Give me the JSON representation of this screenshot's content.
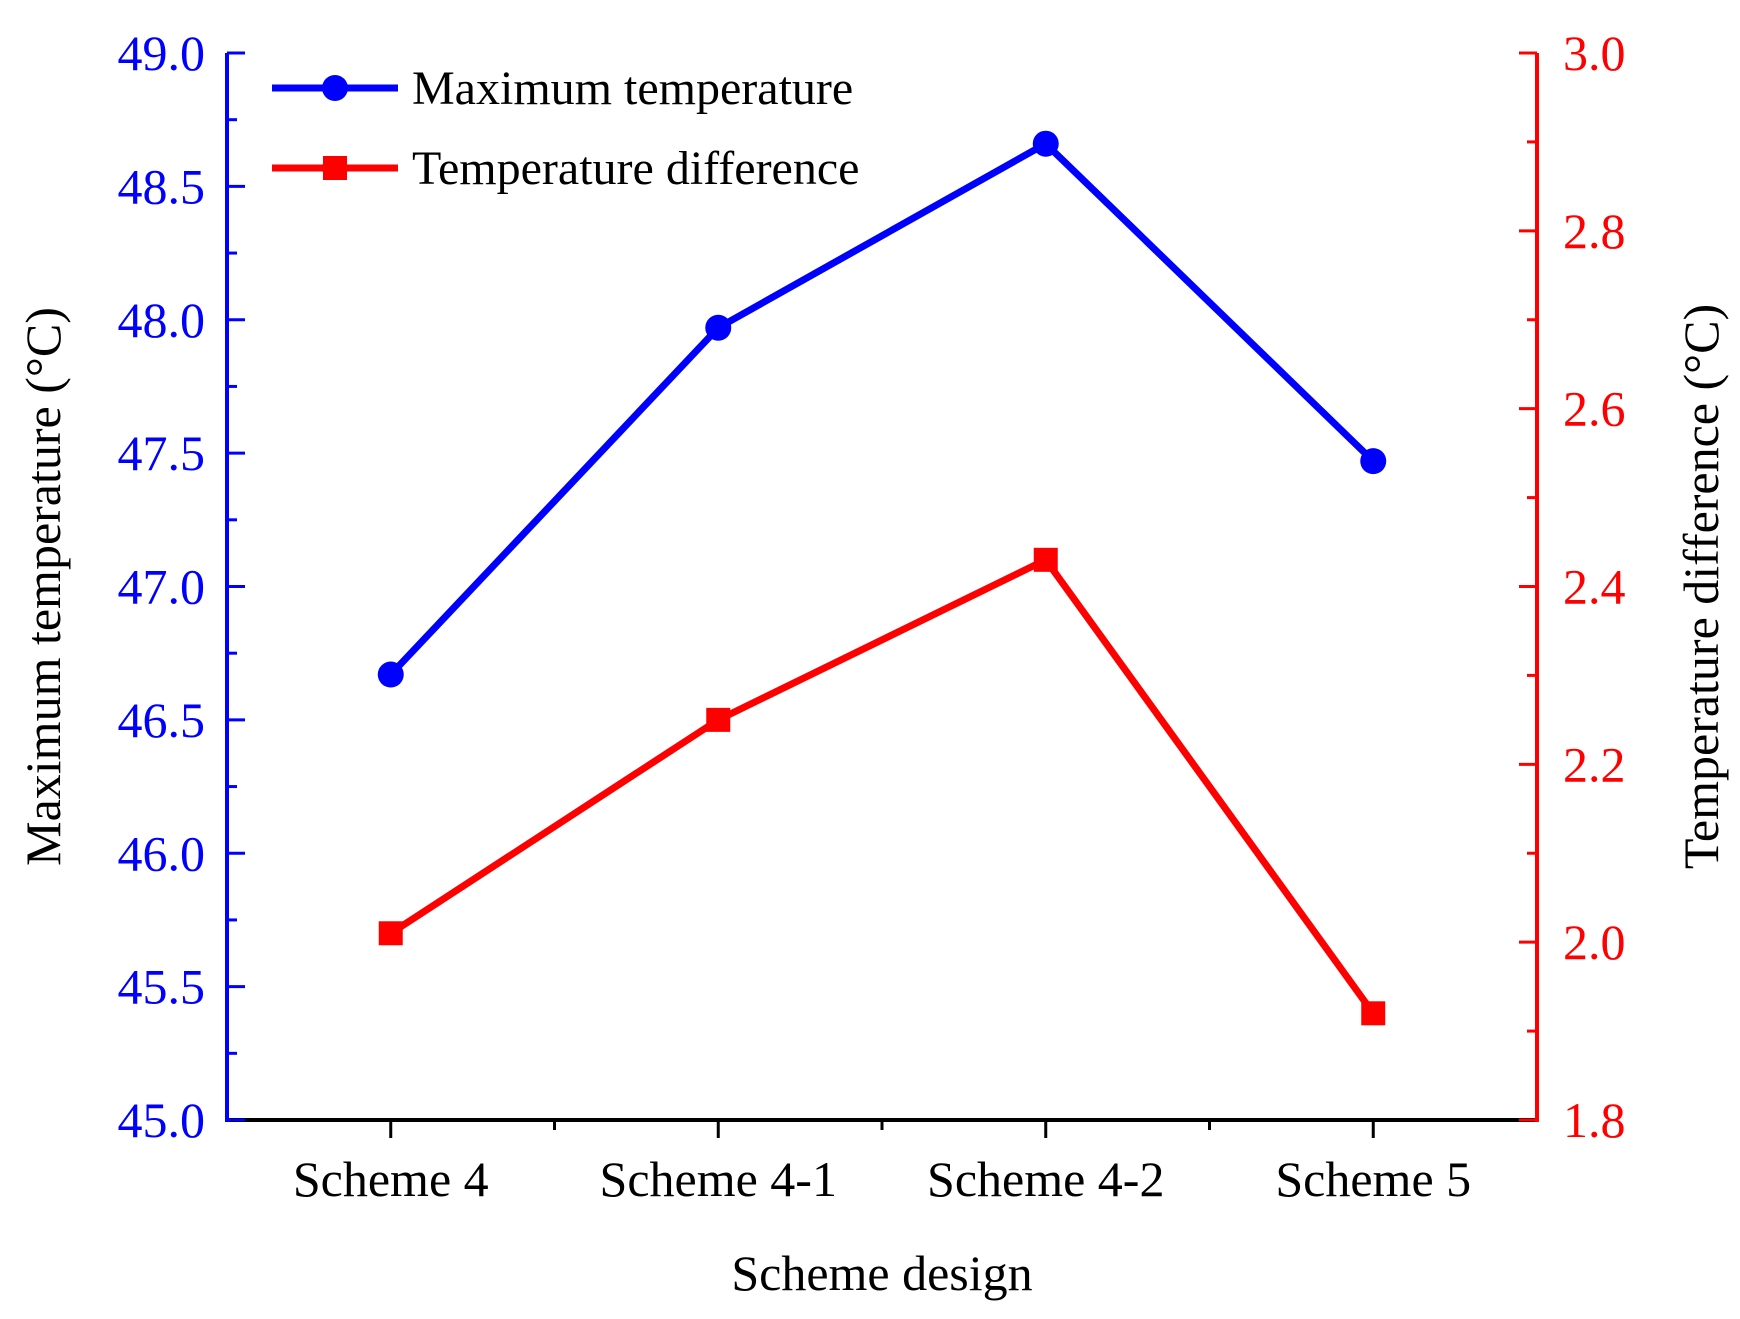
{
  "chart_data": {
    "type": "line",
    "title": "",
    "categories": [
      "Scheme 4",
      "Scheme 4-1",
      "Scheme 4-2",
      "Scheme 5"
    ],
    "xlabel": "Scheme design",
    "y_left": {
      "label": "Maximum temperature (°C)",
      "range": [
        45.0,
        49.0
      ],
      "ticks": [
        "45.0",
        "45.5",
        "46.0",
        "46.5",
        "47.0",
        "47.5",
        "48.0",
        "48.5",
        "49.0"
      ],
      "color": "#0000ff"
    },
    "y_right": {
      "label": "Temperature difference (°C)",
      "range": [
        1.8,
        3.0
      ],
      "ticks": [
        "1.8",
        "2.0",
        "2.2",
        "2.4",
        "2.6",
        "2.8",
        "3.0"
      ],
      "color": "#ff0000"
    },
    "series": [
      {
        "name": "Maximum temperature",
        "axis": "left",
        "marker": "circle",
        "color": "#0000ff",
        "values": [
          46.67,
          47.97,
          48.66,
          47.47
        ]
      },
      {
        "name": "Temperature difference",
        "axis": "right",
        "marker": "square",
        "color": "#ff0000",
        "values": [
          2.01,
          2.25,
          2.43,
          1.92
        ]
      }
    ],
    "legend_position": "top-left",
    "grid": false
  }
}
